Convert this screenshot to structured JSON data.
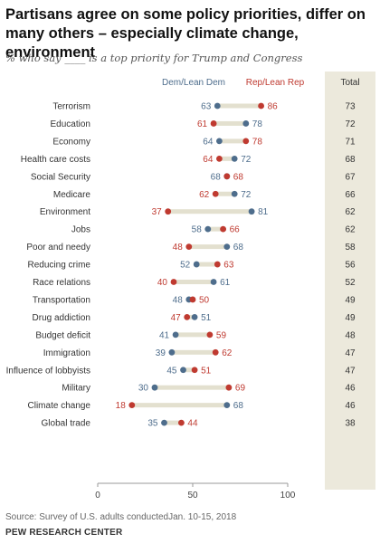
{
  "header": {
    "title": "Partisans agree on some policy priorities, differ on many others – especially climate change, environment",
    "subtitle": "% who say ____ is a top priority for Trump and Congress"
  },
  "footer": {
    "source": "Source: Survey of U.S. adults conductedJan. 10-15, 2018",
    "org": "PEW RESEARCH CENTER"
  },
  "colors": {
    "dem": "#4e6d8c",
    "rep": "#bf3a30",
    "bar": "#e3e0cf",
    "total_bg": "#ece9dc"
  },
  "chart_data": {
    "type": "dot",
    "legend": {
      "dem": "Dem/Lean Dem",
      "rep": "Rep/Lean Rep",
      "total": "Total"
    },
    "xlim": [
      0,
      100
    ],
    "xticks": [
      0,
      50,
      100
    ],
    "rows": [
      {
        "label": "Terrorism",
        "dem": 63,
        "rep": 86,
        "total": 73
      },
      {
        "label": "Education",
        "dem": 78,
        "rep": 61,
        "total": 72
      },
      {
        "label": "Economy",
        "dem": 64,
        "rep": 78,
        "total": 71
      },
      {
        "label": "Health care costs",
        "dem": 72,
        "rep": 64,
        "total": 68
      },
      {
        "label": "Social Security",
        "dem": 68,
        "rep": 68,
        "total": 67
      },
      {
        "label": "Medicare",
        "dem": 72,
        "rep": 62,
        "total": 66
      },
      {
        "label": "Environment",
        "dem": 81,
        "rep": 37,
        "total": 62
      },
      {
        "label": "Jobs",
        "dem": 58,
        "rep": 66,
        "total": 62
      },
      {
        "label": "Poor and needy",
        "dem": 68,
        "rep": 48,
        "total": 58
      },
      {
        "label": "Reducing crime",
        "dem": 52,
        "rep": 63,
        "total": 56
      },
      {
        "label": "Race relations",
        "dem": 61,
        "rep": 40,
        "total": 52
      },
      {
        "label": "Transportation",
        "dem": 48,
        "rep": 50,
        "total": 49
      },
      {
        "label": "Drug addiction",
        "dem": 51,
        "rep": 47,
        "total": 49
      },
      {
        "label": "Budget deficit",
        "dem": 41,
        "rep": 59,
        "total": 48
      },
      {
        "label": "Immigration",
        "dem": 39,
        "rep": 62,
        "total": 47
      },
      {
        "label": "Influence of lobbyists",
        "dem": 45,
        "rep": 51,
        "total": 47
      },
      {
        "label": "Military",
        "dem": 30,
        "rep": 69,
        "total": 46
      },
      {
        "label": "Climate change",
        "dem": 68,
        "rep": 18,
        "total": 46
      },
      {
        "label": "Global trade",
        "dem": 35,
        "rep": 44,
        "total": 38
      }
    ]
  }
}
